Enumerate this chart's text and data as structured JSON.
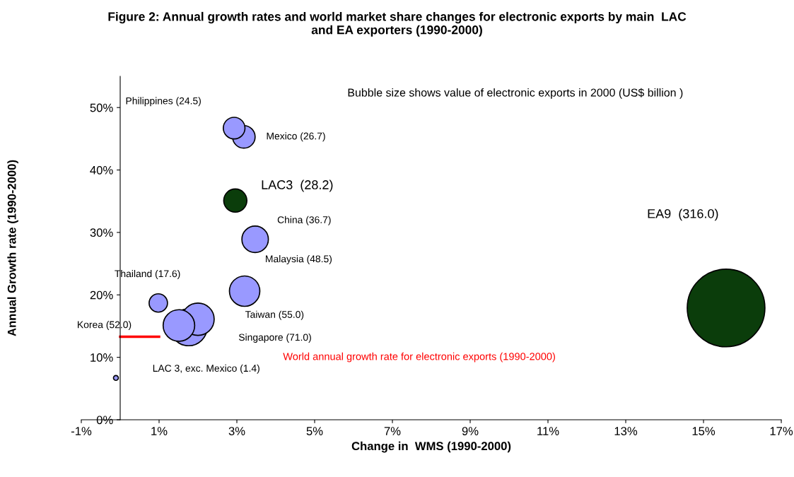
{
  "chart_data": {
    "type": "bubble",
    "title": "Figure 2: Annual growth rates and world market share changes for electronic exports by main  LAC\nand EA exporters (1990-2000)",
    "xlabel": "Change in  WMS (1990-2000)",
    "ylabel": "Annual Growth rate (1990-2000)",
    "xlim": [
      -1,
      17
    ],
    "xticks": [
      {
        "value": -1,
        "label": "-1%"
      },
      {
        "value": 1,
        "label": "1%"
      },
      {
        "value": 3,
        "label": "3%"
      },
      {
        "value": 5,
        "label": "5%"
      },
      {
        "value": 7,
        "label": "7%"
      },
      {
        "value": 9,
        "label": "9%"
      },
      {
        "value": 11,
        "label": "11%"
      },
      {
        "value": 13,
        "label": "13%"
      },
      {
        "value": 15,
        "label": "15%"
      },
      {
        "value": 17,
        "label": "17%"
      }
    ],
    "ylim": [
      0,
      55
    ],
    "yticks": [
      {
        "value": 0,
        "label": "0%"
      },
      {
        "value": 10,
        "label": "10%"
      },
      {
        "value": 20,
        "label": "20%"
      },
      {
        "value": 30,
        "label": "30%"
      },
      {
        "value": 40,
        "label": "40%"
      },
      {
        "value": 50,
        "label": "50%"
      }
    ],
    "series": [
      {
        "x": [
          2.93,
          3.18,
          2.96,
          3.47,
          3.2,
          0.98,
          2.0,
          1.76,
          1.51,
          -0.11,
          15.58
        ],
        "values": [
          46.7,
          45.3,
          35.1,
          28.9,
          20.6,
          18.7,
          16.1,
          14.8,
          15.1,
          6.7,
          17.9
        ],
        "sizes": [
          0.078,
          0.084,
          0.089,
          0.116,
          0.153,
          0.056,
          0.174,
          0.225,
          0.165,
          0.004,
          1
        ],
        "colors": [
          "#9999ff",
          "#9999ff",
          "#0b3d0b",
          "#9999ff",
          "#9999ff",
          "#9999ff",
          "#9999ff",
          "#9999ff",
          "#9999ff",
          "#9999ff",
          "#0b3d0b"
        ]
      },
      {
        "type": "line",
        "x": [
          0,
          1
        ],
        "values": [
          13.3,
          13.3
        ],
        "color": "#ff0000"
      }
    ],
    "annotations": [
      "Philippines (24.5)",
      "Mexico (26.7)",
      "LAC3  (28.2)",
      "China (36.7)",
      "Malaysia (48.5)",
      "Thailand (17.6)",
      "Taiwan (55.0)",
      "Singapore (71.0)",
      "Korea (52.0)",
      "LAC 3, exc. Mexico (1.4)",
      "EA9  (316.0)",
      "World annual growth rate for electronic exports (1990-2000)",
      "Bubble size shows value of electronic exports in 2000 (US$ billion )"
    ]
  }
}
